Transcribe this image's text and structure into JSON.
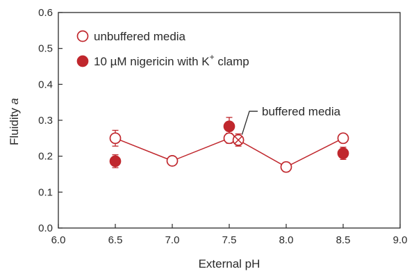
{
  "chart_data": {
    "type": "scatter",
    "xlabel": "External pH",
    "ylabel": "Fluidity",
    "ylabel_italic": "a",
    "xlim": [
      6.0,
      9.0
    ],
    "ylim": [
      0.0,
      0.6
    ],
    "x_ticks": [
      "6.0",
      "6.5",
      "7.0",
      "7.5",
      "8.0",
      "8.5",
      "9.0"
    ],
    "y_ticks": [
      "0.0",
      "0.1",
      "0.2",
      "0.3",
      "0.4",
      "0.5",
      "0.6"
    ],
    "grid": false,
    "legend_position": "top-left",
    "colors": {
      "accent": "#c0272d",
      "axis": "#2a2a2a"
    },
    "series": [
      {
        "name": "unbuffered media",
        "marker": "open-circle",
        "connected": true,
        "points": [
          {
            "x": 6.5,
            "y": 0.25,
            "err": 0.022
          },
          {
            "x": 7.0,
            "y": 0.187,
            "err": 0.008
          },
          {
            "x": 7.5,
            "y": 0.25,
            "err": 0.014
          },
          {
            "x": 8.0,
            "y": 0.17,
            "err": 0.013
          },
          {
            "x": 8.5,
            "y": 0.25,
            "err": 0.009
          }
        ]
      },
      {
        "name_main": "10 µM nigericin with K",
        "name_sup": "+",
        "name_tail": " clamp",
        "marker": "filled-circle",
        "connected": false,
        "points": [
          {
            "x": 6.5,
            "y": 0.186,
            "err": 0.018
          },
          {
            "x": 7.5,
            "y": 0.283,
            "err": 0.025
          },
          {
            "x": 8.5,
            "y": 0.208,
            "err": 0.017
          }
        ]
      },
      {
        "marker": "crossed-circle",
        "connected": true,
        "points": [
          {
            "x": 7.58,
            "y": 0.245,
            "err": 0.017
          }
        ]
      }
    ],
    "annotations": [
      {
        "text": "buffered media",
        "x": 7.75,
        "y": 0.325,
        "target_x": 7.6,
        "target_y": 0.26
      }
    ]
  }
}
